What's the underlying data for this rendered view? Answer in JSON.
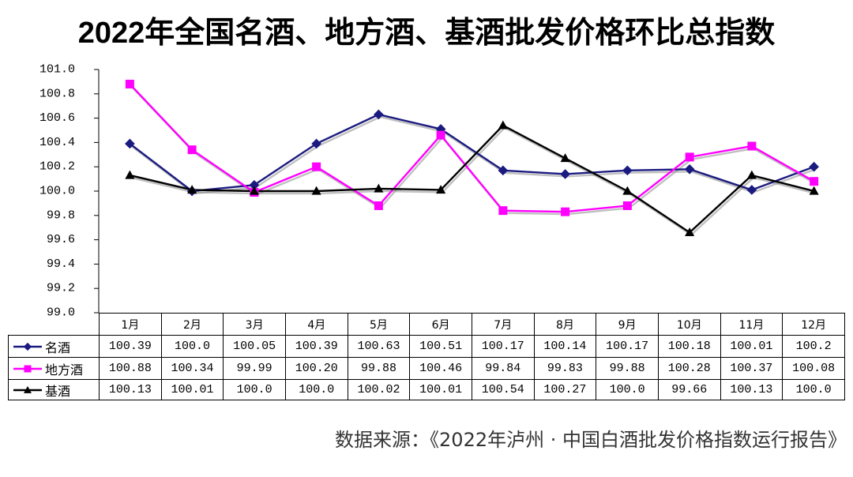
{
  "chart_data": {
    "type": "line",
    "title": "2022年全国名酒、地方酒、基酒批发价格环比总指数",
    "categories": [
      "1月",
      "2月",
      "3月",
      "4月",
      "5月",
      "6月",
      "7月",
      "8月",
      "9月",
      "10月",
      "11月",
      "12月"
    ],
    "ylim": [
      99.0,
      101.0
    ],
    "yticks": [
      "101.0",
      "100.8",
      "100.6",
      "100.4",
      "100.2",
      "100.0",
      "99.8",
      "99.6",
      "99.4",
      "99.2",
      "99.0"
    ],
    "grid": false,
    "legend": "left",
    "series": [
      {
        "name": "名酒",
        "color": "#1a1a80",
        "marker_icon": "diamond-icon",
        "values": [
          100.39,
          100.0,
          100.05,
          100.39,
          100.63,
          100.51,
          100.17,
          100.14,
          100.17,
          100.18,
          100.01,
          100.2
        ],
        "table_text": [
          "100.39",
          "100.0",
          "100.05",
          "100.39",
          "100.63",
          "100.51",
          "100.17",
          "100.14",
          "100.17",
          "100.18",
          "100.01",
          "100.2"
        ]
      },
      {
        "name": "地方酒",
        "color": "#ff00ff",
        "marker_icon": "square-icon",
        "values": [
          100.88,
          100.34,
          99.99,
          100.2,
          99.88,
          100.46,
          99.84,
          99.83,
          99.88,
          100.28,
          100.37,
          100.08
        ],
        "table_text": [
          "100.88",
          "100.34",
          "99.99",
          "100.20",
          "99.88",
          "100.46",
          "99.84",
          "99.83",
          "99.88",
          "100.28",
          "100.37",
          "100.08"
        ]
      },
      {
        "name": "基酒",
        "color": "#000000",
        "marker_icon": "triangle-icon",
        "values": [
          100.13,
          100.01,
          100.0,
          100.0,
          100.02,
          100.01,
          100.54,
          100.27,
          100.0,
          99.66,
          100.13,
          100.0
        ],
        "table_text": [
          "100.13",
          "100.01",
          "100.0",
          "100.0",
          "100.02",
          "100.01",
          "100.54",
          "100.27",
          "100.0",
          "99.66",
          "100.13",
          "100.0"
        ]
      }
    ]
  },
  "source": "数据来源：《2022年泸州 · 中国白酒批发价格指数运行报告》"
}
